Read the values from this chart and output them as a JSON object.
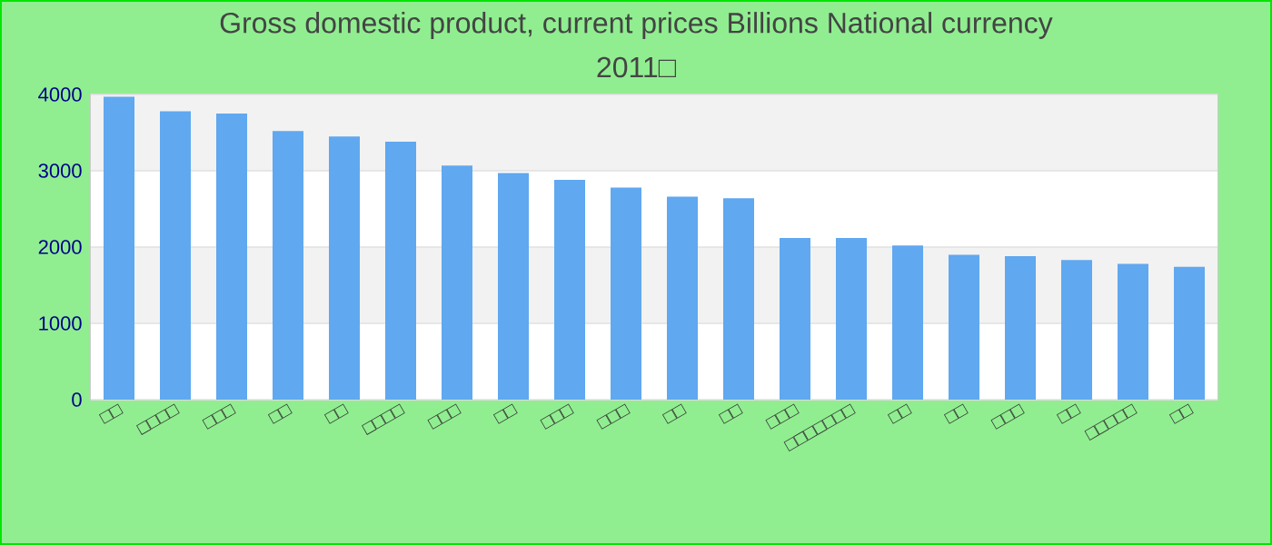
{
  "chart_data": {
    "type": "bar",
    "title": "Gross domestic product, current prices Billions National currency",
    "subtitle": "2011□",
    "categories": [
      "□□",
      "□□□□",
      "□□□",
      "□□",
      "□□",
      "□□□□",
      "□□□",
      "□□",
      "□□□",
      "□□□",
      "□□",
      "□□",
      "□□□",
      "□□□□□□□",
      "□□",
      "□□",
      "□□□",
      "□□",
      "□□□□□",
      "□□"
    ],
    "values": [
      3970,
      3780,
      3750,
      3520,
      3450,
      3380,
      3070,
      2970,
      2880,
      2780,
      2660,
      2640,
      2120,
      2120,
      2020,
      1900,
      1880,
      1830,
      1780,
      1740
    ],
    "color": "#60a8f0",
    "ylim": [
      0,
      4000
    ],
    "yticks": [
      0,
      1000,
      2000,
      3000,
      4000
    ],
    "grid": "y"
  }
}
